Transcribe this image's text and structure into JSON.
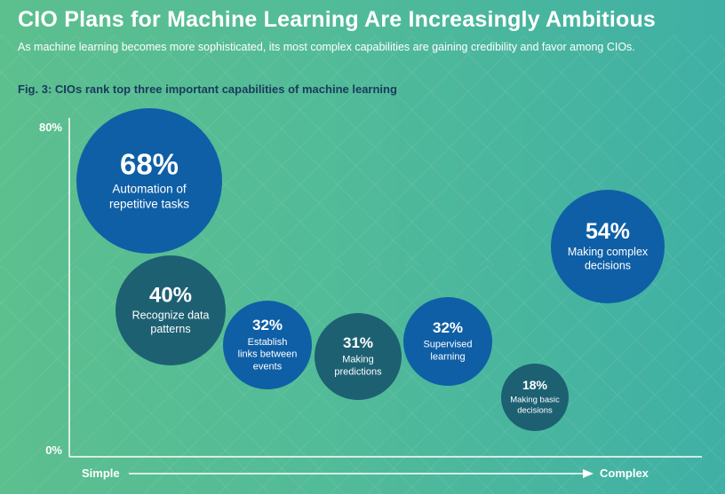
{
  "header": {
    "title": "CIO Plans for Machine Learning Are Increasingly Ambitious",
    "subtitle": "As machine learning becomes more sophisticated, its most complex capabilities are gaining credibility and favor among CIOs.",
    "fig_caption": "Fig. 3: CIOs rank top three important capabilities of machine learning"
  },
  "colors": {
    "background_left": "#5cbf8e",
    "background_right": "#3fb0a5",
    "bubble_blue": "#0f5fa6",
    "bubble_teal": "#1d6072",
    "text_light": "#ffffff",
    "caption_dark": "#1a3a5c"
  },
  "chart_data": {
    "type": "bubble",
    "xlabel_left": "Simple",
    "xlabel_right": "Complex",
    "x_axis_direction": "Simple → Complex",
    "y_tick_labels": [
      "80%",
      "0%"
    ],
    "ylim": [
      0,
      80
    ],
    "points": [
      {
        "value": "68%",
        "label": [
          "Automation of",
          "repetitive tasks"
        ],
        "pct": 68,
        "color": "#0f5fa6"
      },
      {
        "value": "40%",
        "label": [
          "Recognize data",
          "patterns"
        ],
        "pct": 40,
        "color": "#1d6072"
      },
      {
        "value": "32%",
        "label": [
          "Establish",
          "links between",
          "events"
        ],
        "pct": 32,
        "color": "#0f5fa6"
      },
      {
        "value": "31%",
        "label": [
          "Making",
          "predictions"
        ],
        "pct": 31,
        "color": "#1d6072"
      },
      {
        "value": "32%",
        "label": [
          "Supervised",
          "learning"
        ],
        "pct": 32,
        "color": "#0f5fa6"
      },
      {
        "value": "18%",
        "label": [
          "Making basic",
          "decisions"
        ],
        "pct": 18,
        "color": "#1d6072"
      },
      {
        "value": "54%",
        "label": [
          "Making complex",
          "decisions"
        ],
        "pct": 54,
        "color": "#0f5fa6"
      }
    ]
  }
}
